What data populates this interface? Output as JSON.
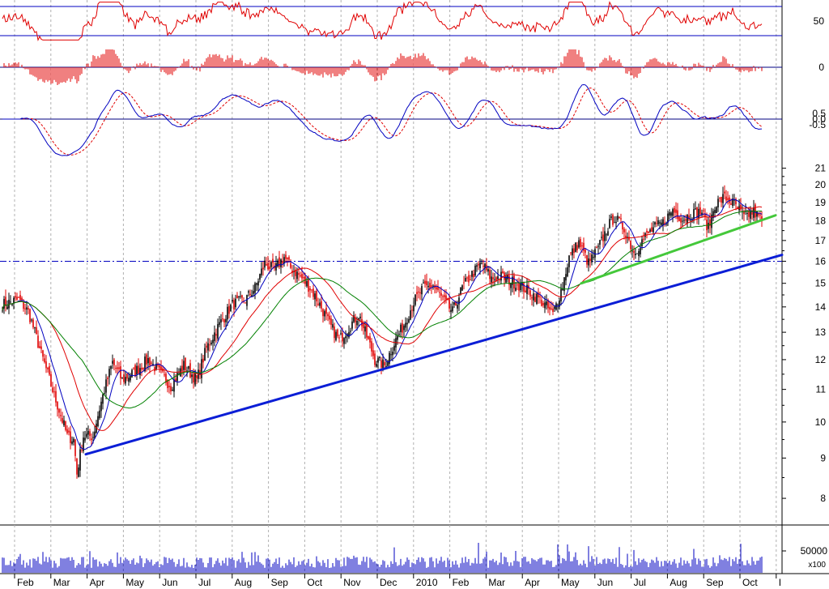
{
  "chart_data": {
    "type": "candlestick",
    "title": "",
    "colors": {
      "up": "#000000",
      "down": "#e00000",
      "ma_fast": "#0000c0",
      "ma_mid": "#e00000",
      "ma_slow": "#008000",
      "trend_primary": "#0b1ed6",
      "trend_short": "#44c83a",
      "hline": "#0000c0",
      "volume": "#0000c0",
      "rsi": "#e00000",
      "momentum": "#e00000",
      "macd": "#0000c0",
      "signal": "#e00000"
    },
    "price_axis": {
      "scale": "log",
      "range": [
        7.4,
        22.0
      ],
      "ticks": [
        "21",
        "20",
        "19",
        "18",
        "17",
        "16",
        "15",
        "14",
        "13",
        "12",
        "11",
        "10",
        "9",
        "8"
      ]
    },
    "x_axis": {
      "months": [
        "Feb",
        "Mar",
        "Apr",
        "May",
        "Jun",
        "Jul",
        "Aug",
        "Sep",
        "Oct",
        "Nov",
        "Dec",
        "2010",
        "Feb",
        "Mar",
        "Apr",
        "May",
        "Jun",
        "Jul",
        "Aug",
        "Sep",
        "Oct",
        "I"
      ]
    },
    "price_keypoints": [
      [
        0,
        14.1
      ],
      [
        10,
        14.3
      ],
      [
        16,
        13.8
      ],
      [
        24,
        12.2
      ],
      [
        32,
        10.8
      ],
      [
        40,
        9.6
      ],
      [
        44,
        9.5
      ],
      [
        46,
        8.6
      ],
      [
        50,
        9.6
      ],
      [
        56,
        9.6
      ],
      [
        62,
        10.8
      ],
      [
        68,
        11.9
      ],
      [
        74,
        11.3
      ],
      [
        82,
        11.6
      ],
      [
        90,
        12.0
      ],
      [
        98,
        11.5
      ],
      [
        104,
        11.1
      ],
      [
        112,
        11.8
      ],
      [
        120,
        11.3
      ],
      [
        126,
        12.4
      ],
      [
        134,
        13.3
      ],
      [
        142,
        14.1
      ],
      [
        150,
        14.3
      ],
      [
        156,
        14.8
      ],
      [
        162,
        15.9
      ],
      [
        168,
        15.6
      ],
      [
        174,
        16.2
      ],
      [
        178,
        15.7
      ],
      [
        184,
        15.3
      ],
      [
        190,
        14.8
      ],
      [
        196,
        14.1
      ],
      [
        202,
        13.3
      ],
      [
        208,
        12.7
      ],
      [
        214,
        13.2
      ],
      [
        220,
        13.7
      ],
      [
        224,
        13.0
      ],
      [
        230,
        12.0
      ],
      [
        236,
        11.8
      ],
      [
        242,
        12.6
      ],
      [
        248,
        13.3
      ],
      [
        254,
        14.2
      ],
      [
        260,
        14.8
      ],
      [
        266,
        14.9
      ],
      [
        272,
        14.3
      ],
      [
        278,
        13.8
      ],
      [
        284,
        14.8
      ],
      [
        290,
        15.4
      ],
      [
        296,
        15.9
      ],
      [
        302,
        15.2
      ],
      [
        308,
        15.3
      ],
      [
        314,
        15.1
      ],
      [
        320,
        14.9
      ],
      [
        326,
        14.6
      ],
      [
        332,
        14.3
      ],
      [
        340,
        13.7
      ],
      [
        346,
        14.9
      ],
      [
        350,
        16.2
      ],
      [
        356,
        16.9
      ],
      [
        362,
        15.9
      ],
      [
        368,
        16.6
      ],
      [
        374,
        17.7
      ],
      [
        378,
        18.2
      ],
      [
        384,
        17.6
      ],
      [
        390,
        16.4
      ],
      [
        396,
        17.1
      ],
      [
        402,
        17.6
      ],
      [
        408,
        17.9
      ],
      [
        414,
        18.6
      ],
      [
        420,
        18.1
      ],
      [
        426,
        18.4
      ],
      [
        432,
        18.5
      ],
      [
        436,
        17.6
      ],
      [
        440,
        18.9
      ],
      [
        446,
        19.3
      ],
      [
        452,
        18.9
      ],
      [
        458,
        18.2
      ],
      [
        464,
        18.5
      ],
      [
        470,
        17.9
      ]
    ],
    "price_bars_count": 470,
    "moving_averages": [
      {
        "name": "",
        "period": 10,
        "color_key": "ma_fast"
      },
      {
        "name": "",
        "period": 30,
        "color_key": "ma_mid"
      },
      {
        "name": "",
        "period": 50,
        "color_key": "ma_slow"
      }
    ],
    "trendlines": [
      {
        "from": [
          52,
          9.1
        ],
        "to": [
          482,
          16.3
        ],
        "color_key": "trend_primary"
      },
      {
        "from": [
          358,
          15.0
        ],
        "to": [
          478,
          18.3
        ],
        "color_key": "trend_short"
      }
    ],
    "horizontal_line": {
      "value": 16.0,
      "style": "dash-dot",
      "color_key": "hline"
    },
    "indicators": [
      {
        "type": "rsi",
        "ticks": [
          "50"
        ],
        "bands": [
          70,
          50,
          30
        ]
      },
      {
        "type": "momentum",
        "ticks": [
          "0"
        ]
      },
      {
        "type": "macd",
        "ticks": [
          "0.5",
          "0.0",
          "-0.5"
        ]
      }
    ],
    "volume": {
      "ticks": [
        "50000"
      ],
      "unit_label": "x100"
    }
  }
}
